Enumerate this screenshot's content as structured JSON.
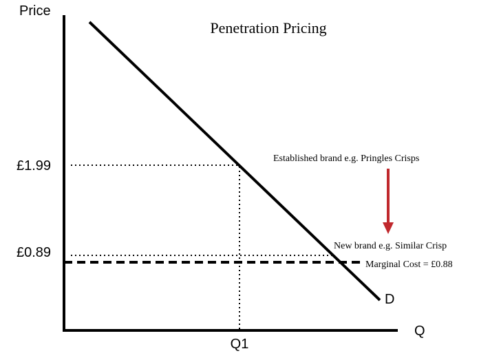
{
  "title": "Penetration Pricing",
  "axes": {
    "y_label": "Price",
    "x_label": "Q",
    "price_high_label": "£1.99",
    "price_low_label": "£0.89",
    "quantity_label": "Q1"
  },
  "annotations": {
    "established_brand": "Established brand e.g. Pringles Crisps",
    "new_brand": "New brand e.g. Similar Crisp",
    "marginal_cost": "Marginal Cost = £0.88",
    "demand_curve": "D"
  },
  "colors": {
    "line": "#000000",
    "arrow": "#c0282d"
  }
}
